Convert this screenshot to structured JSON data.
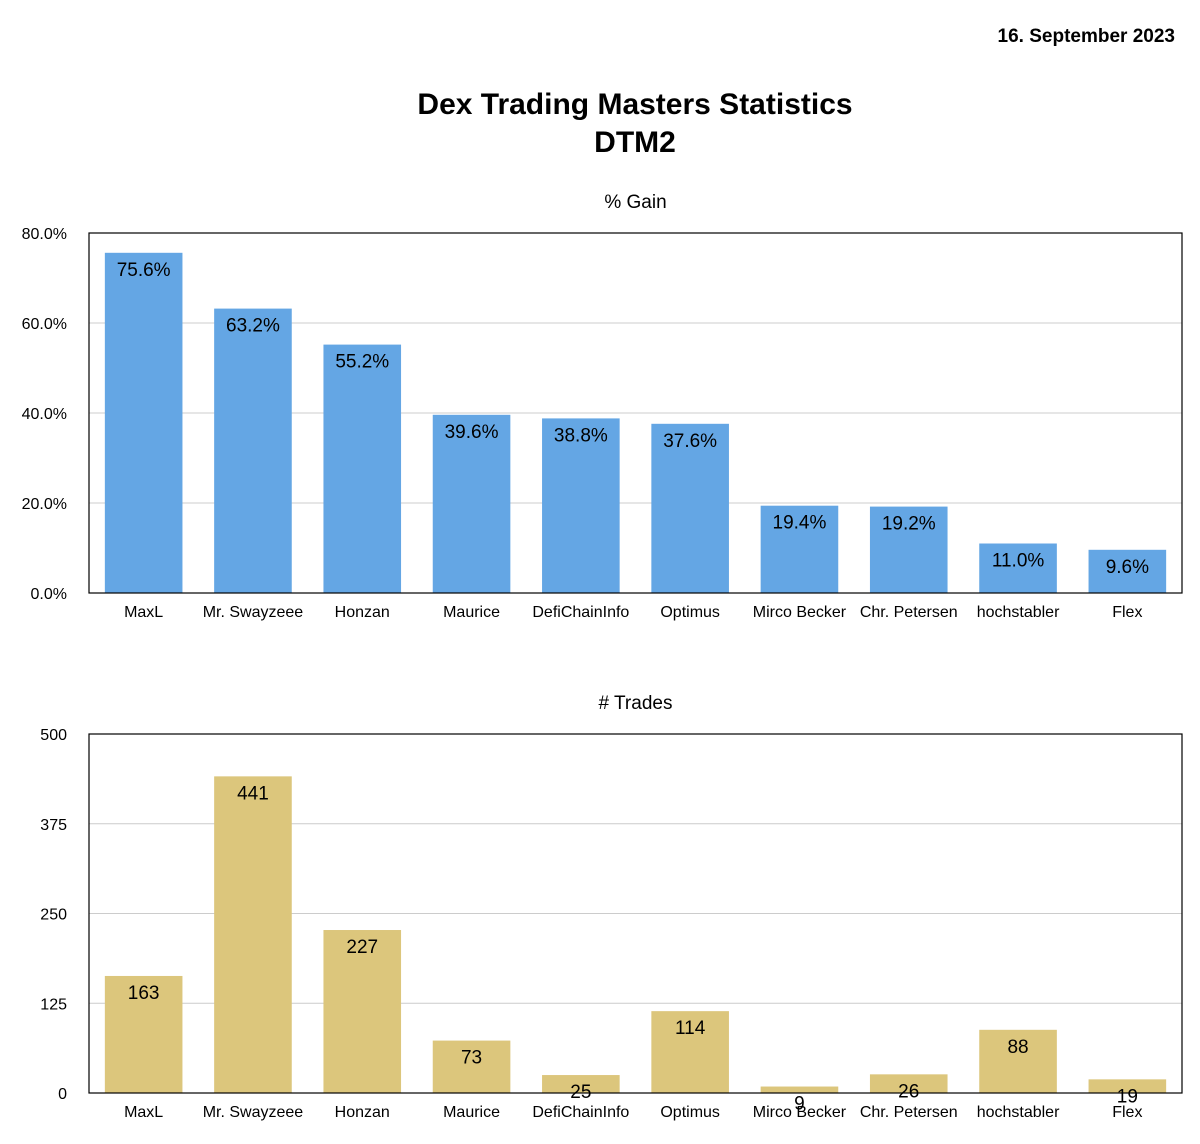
{
  "date": "16. September 2023",
  "title_line1": "Dex Trading Masters Statistics",
  "title_line2": "DTM2",
  "colors": {
    "gain_bar": "#64a6e4",
    "trades_bar": "#dcc67c",
    "grid": "#cccccc",
    "frame": "#000000"
  },
  "chart_data": [
    {
      "type": "bar",
      "title": "% Gain",
      "categories": [
        "MaxL",
        "Mr. Swayzeee",
        "Honzan",
        "Maurice",
        "DefiChainInfo",
        "Optimus",
        "Mirco Becker",
        "Chr. Petersen",
        "hochstabler",
        "Flex"
      ],
      "values": [
        75.6,
        63.2,
        55.2,
        39.6,
        38.8,
        37.6,
        19.4,
        19.2,
        11.0,
        9.6
      ],
      "data_labels": [
        "75.6%",
        "63.2%",
        "55.2%",
        "39.6%",
        "38.8%",
        "37.6%",
        "19.4%",
        "19.2%",
        "11.0%",
        "9.6%"
      ],
      "yticks": [
        0,
        20,
        40,
        60,
        80
      ],
      "ytick_labels": [
        "0.0%",
        "20.0%",
        "40.0%",
        "60.0%",
        "80.0%"
      ],
      "ylim": [
        0,
        80
      ],
      "grid": true
    },
    {
      "type": "bar",
      "title": "# Trades",
      "categories": [
        "MaxL",
        "Mr. Swayzeee",
        "Honzan",
        "Maurice",
        "DefiChainInfo",
        "Optimus",
        "Mirco Becker",
        "Chr. Petersen",
        "hochstabler",
        "Flex"
      ],
      "values": [
        163,
        441,
        227,
        73,
        25,
        114,
        9,
        26,
        88,
        19
      ],
      "data_labels": [
        "163",
        "441",
        "227",
        "73",
        "25",
        "114",
        "9",
        "26",
        "88",
        "19"
      ],
      "yticks": [
        0,
        125,
        250,
        375,
        500
      ],
      "ytick_labels": [
        "0",
        "125",
        "250",
        "375",
        "500"
      ],
      "ylim": [
        0,
        500
      ],
      "grid": true
    }
  ]
}
